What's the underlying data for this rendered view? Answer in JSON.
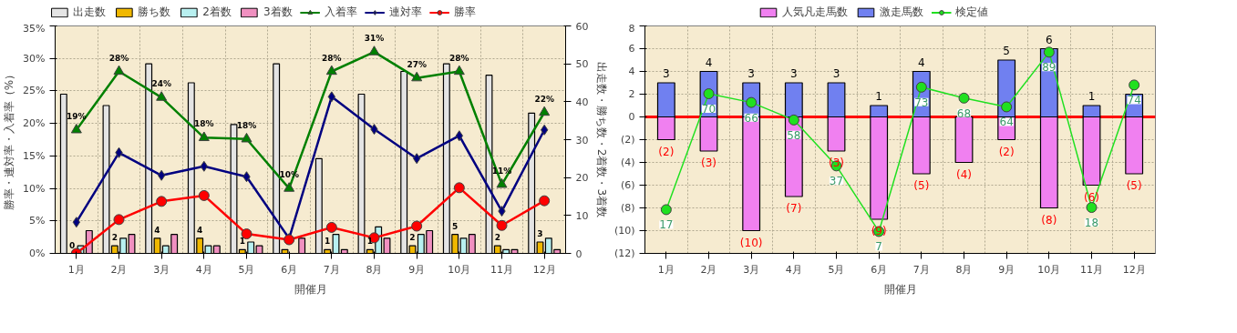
{
  "chart_data": [
    {
      "type": "bar",
      "categories": [
        "1月",
        "2月",
        "3月",
        "4月",
        "5月",
        "6月",
        "7月",
        "8月",
        "9月",
        "10月",
        "11月",
        "12月"
      ],
      "xlabel": "開催月",
      "ylabel": "勝率・連対率・入着率（%）",
      "y2label": "出走数・勝ち数・2着数・3着数",
      "ylim": [
        0,
        35
      ],
      "yticks": [
        {
          "value": 0,
          "label": "0%"
        },
        {
          "value": 5,
          "label": "5%"
        },
        {
          "value": 10,
          "label": "10%"
        },
        {
          "value": 15,
          "label": "15%"
        },
        {
          "value": 20,
          "label": "20%"
        },
        {
          "value": 25,
          "label": "25%"
        },
        {
          "value": 30,
          "label": "30%"
        },
        {
          "value": 35,
          "label": "35%"
        }
      ],
      "y2lim": [
        0,
        60
      ],
      "y2ticks": [
        0,
        10,
        20,
        30,
        40,
        50,
        60
      ],
      "grid": true,
      "legend": "top",
      "series": [
        {
          "name": "出走数",
          "color": "#e4e4e4",
          "axis": "y2",
          "values": [
            42,
            39,
            50,
            45,
            34,
            50,
            25,
            42,
            48,
            50,
            47,
            37
          ]
        },
        {
          "name": "勝ち数",
          "color": "#f0b800",
          "axis": "y2",
          "values": [
            0,
            2,
            4,
            4,
            1,
            1,
            1,
            1,
            2,
            5,
            2,
            3
          ],
          "value_labels": [
            "0",
            "2",
            "4",
            "4",
            "1",
            null,
            "1",
            "1",
            "2",
            "5",
            "2",
            "3"
          ]
        },
        {
          "name": "2着数",
          "color": "#b8f0f0",
          "axis": "y2",
          "values": [
            2,
            4,
            2,
            2,
            3,
            0,
            5,
            7,
            5,
            4,
            1,
            4
          ]
        },
        {
          "name": "3着数",
          "color": "#f090c0",
          "axis": "y2",
          "values": [
            6,
            5,
            5,
            2,
            2,
            4,
            1,
            4,
            6,
            5,
            1,
            1
          ]
        },
        {
          "name": "入着率",
          "type": "line",
          "color": "#008000",
          "marker": "triangle",
          "values": [
            19,
            28,
            24,
            17.8,
            17.6,
            10,
            28,
            31,
            27,
            28,
            10.6,
            21.7
          ],
          "value_labels": [
            "19%",
            "28%",
            "24%",
            "18%",
            "18%",
            "10%",
            "28%",
            "31%",
            "27%",
            "28%",
            "11%",
            "22%"
          ]
        },
        {
          "name": "連対率",
          "type": "line",
          "color": "#000080",
          "marker": "diamond",
          "values": [
            4.8,
            15.5,
            12,
            13.4,
            11.8,
            2.3,
            24.1,
            19.1,
            14.6,
            18.1,
            6.5,
            19
          ]
        },
        {
          "name": "勝率",
          "type": "line",
          "color": "#ff0000",
          "marker": "circle",
          "values": [
            0,
            5.2,
            8,
            8.9,
            3,
            2.1,
            4,
            2.4,
            4.2,
            10.1,
            4.3,
            8.1
          ]
        }
      ]
    },
    {
      "type": "bar",
      "stacked": true,
      "categories": [
        "1月",
        "2月",
        "3月",
        "4月",
        "5月",
        "6月",
        "7月",
        "8月",
        "9月",
        "10月",
        "11月",
        "12月"
      ],
      "xlabel": "開催月",
      "ylim": [
        -12,
        8
      ],
      "yticks": [
        8,
        6,
        4,
        2,
        0,
        {
          "value": -2,
          "label": "(2)"
        },
        {
          "value": -4,
          "label": "(4)"
        },
        {
          "value": -6,
          "label": "(6)"
        },
        {
          "value": -8,
          "label": "(8)"
        },
        {
          "value": -10,
          "label": "(10)"
        },
        {
          "value": -12,
          "label": "(12)"
        }
      ],
      "y2lim": [
        -3,
        101
      ],
      "grid": true,
      "legend": "top",
      "ref_lines": [
        {
          "axis": "y",
          "value": 0,
          "color": "#ff0000"
        }
      ],
      "series": [
        {
          "name": "人気凡走馬数",
          "color": "#f080f0",
          "values": [
            -2,
            -3,
            -10,
            -7,
            -3,
            -9,
            -5,
            -4,
            -2,
            -8,
            -6,
            -5
          ],
          "value_labels": [
            "(2)",
            "(3)",
            "(10)",
            "(7)",
            "(3)",
            "(9)",
            "(5)",
            "(4)",
            "(2)",
            "(8)",
            "(6)",
            "(5)"
          ]
        },
        {
          "name": "激走馬数",
          "color": "#7080f0",
          "values": [
            3,
            4,
            3,
            3,
            3,
            1,
            4,
            0,
            5,
            6,
            1,
            2
          ],
          "value_labels": [
            "3",
            "4",
            "3",
            "3",
            "3",
            "1",
            "4",
            null,
            "5",
            "6",
            "1",
            null
          ]
        },
        {
          "name": "検定値",
          "type": "line",
          "axis": "y2",
          "color": "#20e020",
          "marker": "circle",
          "values": [
            17,
            70,
            66,
            58,
            37,
            7,
            73,
            68,
            64,
            89,
            18,
            74
          ],
          "value_labels": [
            "17",
            "70",
            "66",
            "58",
            "37",
            "7",
            "73",
            "68",
            "64",
            "89",
            "18",
            "74"
          ]
        }
      ]
    }
  ]
}
